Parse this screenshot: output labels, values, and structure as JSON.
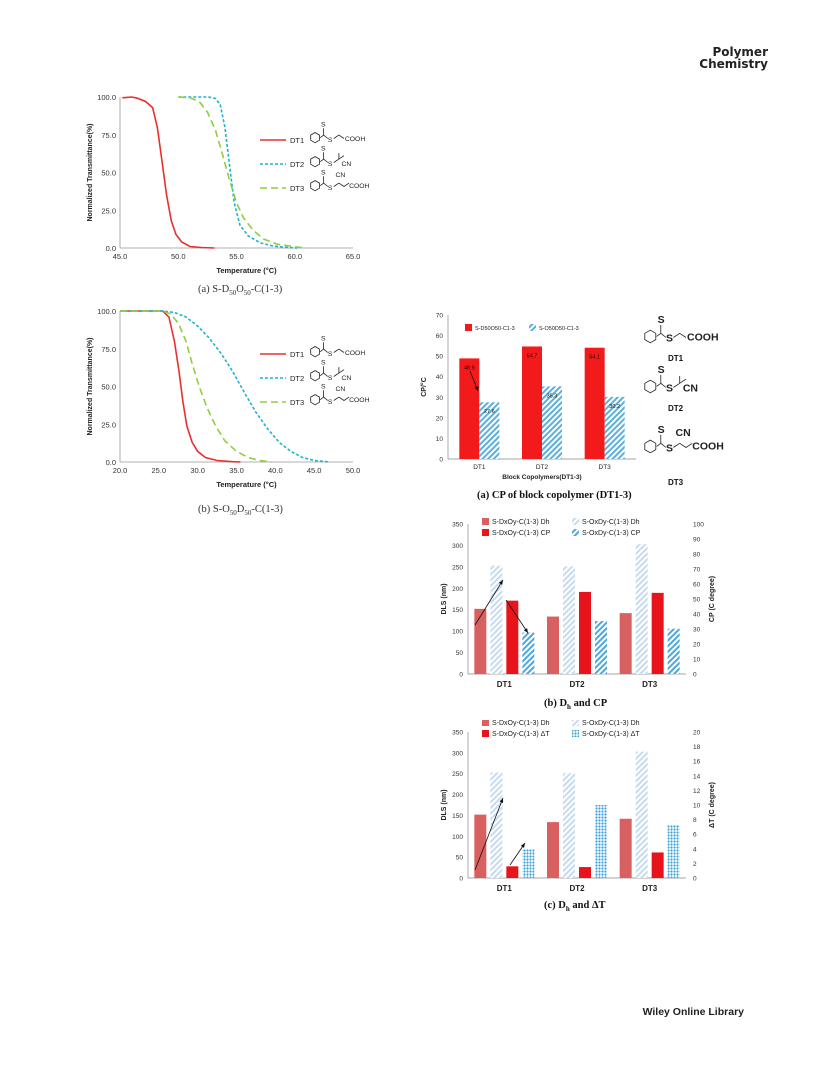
{
  "header": {
    "brand_line1": "Polymer",
    "brand_line2": "Chemistry"
  },
  "footer": {
    "text": "Wiley Online Library"
  },
  "captions": {
    "a1": "(a) S-D50O50-C(1-3)",
    "b1": "(b) S-O50D50-C(1-3)",
    "a2": "(a) CP of block copolymer (DT1-3)",
    "b2": "(b) Dh and CP",
    "c2": "(c) Dh and ΔT"
  },
  "structure_labels": {
    "dt1": "DT1",
    "dt2": "DT2",
    "dt3": "DT3",
    "cooh": "COOH",
    "cn": "CN",
    "s": "S"
  },
  "chart_data": [
    {
      "id": "chart1",
      "type": "line",
      "ylabel": "Normalized Transmittance(%)",
      "xlabel": "Temperature (°C)",
      "xlim": [
        45,
        65
      ],
      "ylim": [
        0,
        100
      ],
      "xticks": [
        "45.0",
        "50.0",
        "55.0",
        "60.0",
        "65.0"
      ],
      "yticks": [
        "0.0",
        "25.0",
        "50.0",
        "75.0",
        "100.0"
      ],
      "legend_position": "right",
      "series": [
        {
          "name": "DT1",
          "color": "#e8302f",
          "dash": "solid",
          "points": [
            [
              45.2,
              99.5
            ],
            [
              46.0,
              100
            ],
            [
              46.5,
              99.2
            ],
            [
              47.2,
              97
            ],
            [
              47.8,
              93
            ],
            [
              48.2,
              80
            ],
            [
              48.6,
              58
            ],
            [
              49.0,
              35
            ],
            [
              49.4,
              18
            ],
            [
              49.8,
              9
            ],
            [
              50.3,
              4
            ],
            [
              51.0,
              1
            ],
            [
              52.0,
              0.3
            ],
            [
              53.1,
              0
            ]
          ]
        },
        {
          "name": "DT2",
          "color": "#1fb3cf",
          "dash": "short",
          "points": [
            [
              50.0,
              100
            ],
            [
              52.6,
              100
            ],
            [
              53.2,
              99
            ],
            [
              53.6,
              95
            ],
            [
              54.0,
              80
            ],
            [
              54.4,
              55
            ],
            [
              54.8,
              30
            ],
            [
              55.3,
              15
            ],
            [
              56.0,
              8
            ],
            [
              57.0,
              3.5
            ],
            [
              58.0,
              1.5
            ],
            [
              59.0,
              0.5
            ],
            [
              60.2,
              0
            ]
          ]
        },
        {
          "name": "DT3",
          "color": "#8fce3f",
          "dash": "long",
          "points": [
            [
              50.0,
              100
            ],
            [
              51.0,
              99.5
            ],
            [
              51.8,
              97
            ],
            [
              52.5,
              90
            ],
            [
              53.2,
              78
            ],
            [
              53.8,
              62
            ],
            [
              54.4,
              45
            ],
            [
              55.0,
              30
            ],
            [
              55.6,
              20
            ],
            [
              56.4,
              12
            ],
            [
              57.3,
              6
            ],
            [
              58.5,
              2.5
            ],
            [
              60.0,
              0.8
            ],
            [
              61.0,
              0
            ]
          ]
        }
      ]
    },
    {
      "id": "chart2",
      "type": "line",
      "ylabel": "Normalized Transmittance(%)",
      "xlabel": "Temperature (°C)",
      "xlim": [
        20,
        50
      ],
      "ylim": [
        0,
        100
      ],
      "xticks": [
        "20.0",
        "25.0",
        "30.0",
        "35.0",
        "40.0",
        "45.0",
        "50.0"
      ],
      "yticks": [
        "0.0",
        "25.0",
        "50.0",
        "75.0",
        "100.0"
      ],
      "legend_position": "right",
      "series": [
        {
          "name": "DT1",
          "color": "#e8302f",
          "dash": "solid",
          "points": [
            [
              20,
              100
            ],
            [
              25.5,
              100
            ],
            [
              26.3,
              96
            ],
            [
              27.0,
              80
            ],
            [
              27.6,
              60
            ],
            [
              28.1,
              40
            ],
            [
              28.6,
              24
            ],
            [
              29.3,
              13
            ],
            [
              30.0,
              7
            ],
            [
              31.0,
              3
            ],
            [
              32.5,
              1
            ],
            [
              34.5,
              0.2
            ],
            [
              35.5,
              0
            ]
          ]
        },
        {
          "name": "DT2",
          "color": "#1fb3cf",
          "dash": "short",
          "points": [
            [
              20,
              100
            ],
            [
              25.5,
              100
            ],
            [
              27.0,
              99
            ],
            [
              28.5,
              96
            ],
            [
              30.0,
              90
            ],
            [
              31.5,
              82
            ],
            [
              33.0,
              72
            ],
            [
              34.5,
              60
            ],
            [
              36.0,
              46
            ],
            [
              37.5,
              33
            ],
            [
              39.0,
              22
            ],
            [
              40.5,
              13
            ],
            [
              42.0,
              7
            ],
            [
              43.5,
              3
            ],
            [
              45.0,
              1
            ],
            [
              47.0,
              0
            ]
          ]
        },
        {
          "name": "DT3",
          "color": "#8fce3f",
          "dash": "long",
          "points": [
            [
              20,
              100
            ],
            [
              25.5,
              100
            ],
            [
              26.5,
              98
            ],
            [
              27.5,
              92
            ],
            [
              28.5,
              80
            ],
            [
              29.3,
              65
            ],
            [
              30.2,
              50
            ],
            [
              31.2,
              36
            ],
            [
              32.3,
              24
            ],
            [
              33.5,
              14
            ],
            [
              35.0,
              7
            ],
            [
              36.5,
              3
            ],
            [
              38.0,
              1
            ],
            [
              39.5,
              0
            ]
          ]
        }
      ]
    },
    {
      "id": "chart3",
      "type": "bar",
      "ylabel": "CP/°C",
      "xlabel": "Block Copolymers(DT1-3)",
      "ylim": [
        0,
        70
      ],
      "yticks": [
        "0",
        "10",
        "20",
        "30",
        "40",
        "50",
        "60",
        "70"
      ],
      "categories": [
        "DT1",
        "DT2",
        "DT3"
      ],
      "legend_position": "top",
      "series": [
        {
          "name": "S-D50O50-C1-3",
          "color": "#f21a1a",
          "pattern": "solid",
          "values": [
            48.9,
            54.7,
            54.1
          ],
          "labels": [
            "48.9",
            "54.7",
            "54.1"
          ]
        },
        {
          "name": "S-O50D50-C1-3",
          "color": "#5ab0dc",
          "pattern": "hatch",
          "values": [
            27.6,
            35.3,
            30.2
          ],
          "labels": [
            "27.6",
            "35.3",
            "30.2"
          ]
        }
      ]
    },
    {
      "id": "chart4",
      "type": "bar",
      "ylabel": "DLS (nm)",
      "ylabel_right": "CP (C degree)",
      "ylim": [
        0,
        350
      ],
      "ylim_right": [
        0,
        100
      ],
      "yticks": [
        "0",
        "50",
        "100",
        "150",
        "200",
        "250",
        "300",
        "350"
      ],
      "yticks_right": [
        "0",
        "10",
        "20",
        "30",
        "40",
        "50",
        "60",
        "70",
        "80",
        "90",
        "100"
      ],
      "categories": [
        "DT1",
        "DT2",
        "DT3"
      ],
      "legend_position": "top",
      "series": [
        {
          "name": "S-DxOy-C(1-3) Dh",
          "color": "#d96060",
          "pattern": "solid",
          "axis": "left",
          "values": [
            152,
            134,
            142
          ]
        },
        {
          "name": "S-OxDy-C(1-3) Dh",
          "color": "#c6daf0",
          "pattern": "hatch",
          "axis": "left",
          "values": [
            253,
            251,
            303
          ]
        },
        {
          "name": "S-DxOy-C(1-3) CP",
          "color": "#e8141b",
          "pattern": "solid",
          "axis": "right",
          "values": [
            48.9,
            54.7,
            54.1
          ]
        },
        {
          "name": "S-OxDy-C(1-3) CP",
          "color": "#4aa8dc",
          "pattern": "hatch",
          "axis": "right",
          "values": [
            27.6,
            35.3,
            30.2
          ]
        }
      ]
    },
    {
      "id": "chart5",
      "type": "bar",
      "ylabel": "DLS (nm)",
      "ylabel_right": "ΔT (C degree)",
      "ylim": [
        0,
        350
      ],
      "ylim_right": [
        0,
        20
      ],
      "yticks": [
        "0",
        "50",
        "100",
        "150",
        "200",
        "250",
        "300",
        "350"
      ],
      "yticks_right": [
        "0",
        "2",
        "4",
        "6",
        "8",
        "10",
        "12",
        "14",
        "16",
        "18",
        "20"
      ],
      "categories": [
        "DT1",
        "DT2",
        "DT3"
      ],
      "legend_position": "top",
      "series": [
        {
          "name": "S-DxOy-C(1-3) Dh",
          "color": "#d96060",
          "pattern": "solid",
          "axis": "left",
          "values": [
            152,
            134,
            142
          ]
        },
        {
          "name": "S-OxDy-C(1-3) Dh",
          "color": "#c6daf0",
          "pattern": "hatch",
          "axis": "left",
          "values": [
            253,
            251,
            303
          ]
        },
        {
          "name": "S-DxOy-C(1-3) ΔT",
          "color": "#e8141b",
          "pattern": "solid",
          "axis": "right",
          "values": [
            1.6,
            1.5,
            3.5
          ]
        },
        {
          "name": "S-OxDy-C(1-3) ΔT",
          "color": "#3aa0dc",
          "pattern": "dots",
          "axis": "right",
          "values": [
            4.0,
            10.0,
            7.3
          ]
        }
      ]
    }
  ]
}
